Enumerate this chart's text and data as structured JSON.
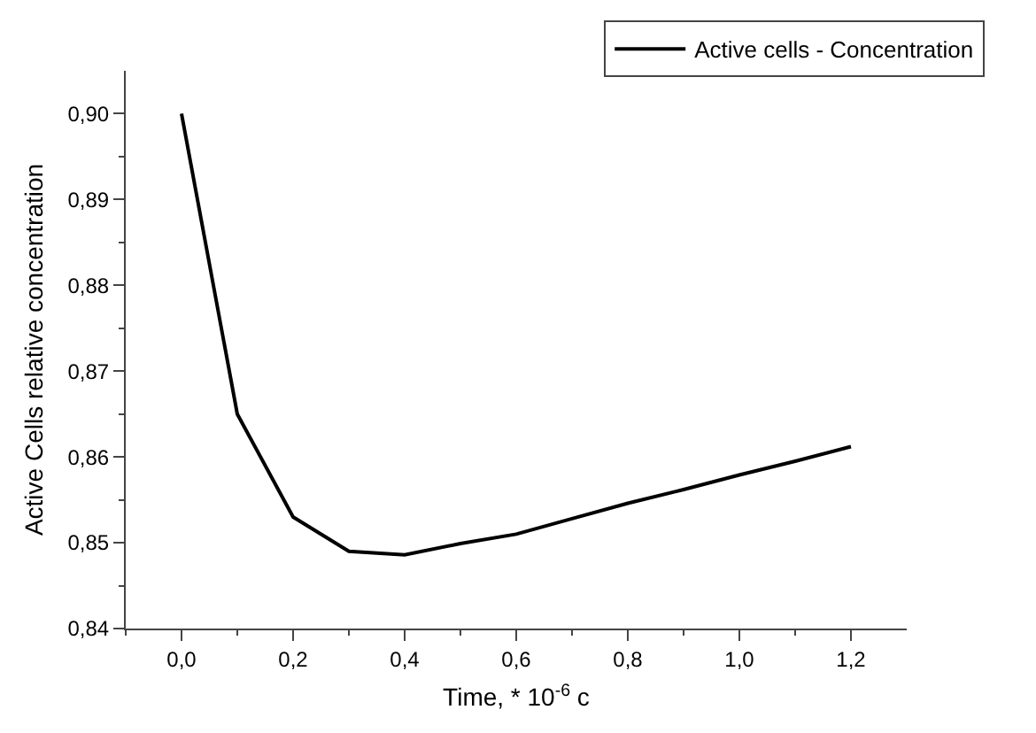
{
  "chart_data": {
    "type": "line",
    "xlabel": "Time, * 10$^{-6}$ c",
    "ylabel": "Active Cells relative concentration",
    "x": [
      0,
      0.1,
      0.2,
      0.3,
      0.4,
      0.5,
      0.6,
      0.7,
      0.8,
      0.9,
      1.0,
      1.1,
      1.2
    ],
    "series": [
      {
        "name": "Active cells - Concentration",
        "color": "#000000",
        "values": [
          0.9,
          0.865,
          0.853,
          0.849,
          0.8486,
          0.8499,
          0.851,
          0.8528,
          0.8546,
          0.8562,
          0.8579,
          0.8595,
          0.8612
        ]
      }
    ],
    "xlim": [
      -0.1,
      1.3
    ],
    "xticks": [
      {
        "value": 0,
        "label": "0,0"
      },
      {
        "value": 0.2,
        "label": "0,2"
      },
      {
        "value": 0.4,
        "label": "0,4"
      },
      {
        "value": 0.6,
        "label": "0,6"
      },
      {
        "value": 0.8,
        "label": "0,8"
      },
      {
        "value": 1.0,
        "label": "1,0"
      },
      {
        "value": 1.2,
        "label": "1,2"
      },
      {
        "value": -0.1,
        "label": null
      },
      {
        "value": 0.1,
        "label": null
      },
      {
        "value": 0.3,
        "label": null
      },
      {
        "value": 0.5,
        "label": null
      },
      {
        "value": 0.7,
        "label": null
      },
      {
        "value": 0.9,
        "label": null
      },
      {
        "value": 1.1,
        "label": null
      }
    ],
    "ylim": [
      0.84,
      0.905
    ],
    "yticks": [
      {
        "value": 0.84,
        "label": "0,84"
      },
      {
        "value": 0.85,
        "label": "0,85"
      },
      {
        "value": 0.86,
        "label": "0,86"
      },
      {
        "value": 0.87,
        "label": "0,87"
      },
      {
        "value": 0.88,
        "label": "0,88"
      },
      {
        "value": 0.89,
        "label": "0,89"
      },
      {
        "value": 0.9,
        "label": "0,90"
      },
      {
        "value": 0.845,
        "label": null
      },
      {
        "value": 0.855,
        "label": null
      },
      {
        "value": 0.865,
        "label": null
      },
      {
        "value": 0.875,
        "label": null
      },
      {
        "value": 0.885,
        "label": null
      },
      {
        "value": 0.895,
        "label": null
      }
    ],
    "grid": false,
    "legend": "top right",
    "marker": "none",
    "line_style": "solid"
  }
}
